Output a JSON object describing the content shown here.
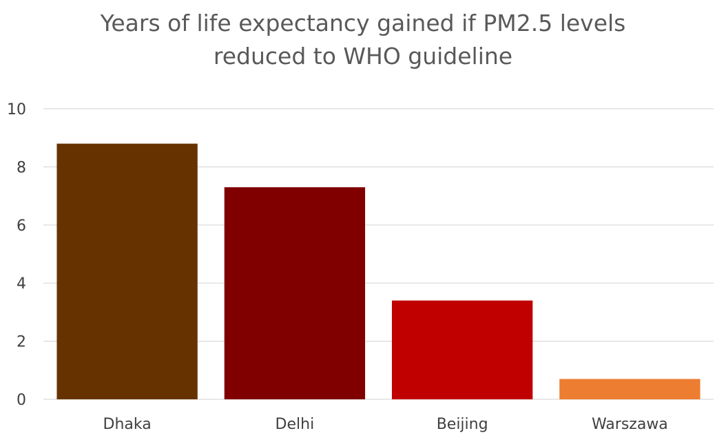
{
  "chart_data": {
    "type": "bar",
    "title_lines": [
      "Years of life expectancy gained if PM2.5 levels",
      "reduced to WHO guideline"
    ],
    "xlabel": "",
    "ylabel": "",
    "categories": [
      "Dhaka",
      "Delhi",
      "Beijing",
      "Warszawa"
    ],
    "values": [
      8.8,
      7.3,
      3.4,
      0.7
    ],
    "bar_colors": [
      "#663300",
      "#800000",
      "#c00000",
      "#ed7d31"
    ],
    "ylim": [
      0,
      10
    ],
    "yticks": [
      0,
      2,
      4,
      6,
      8,
      10
    ],
    "grid": true,
    "legend": "none"
  }
}
